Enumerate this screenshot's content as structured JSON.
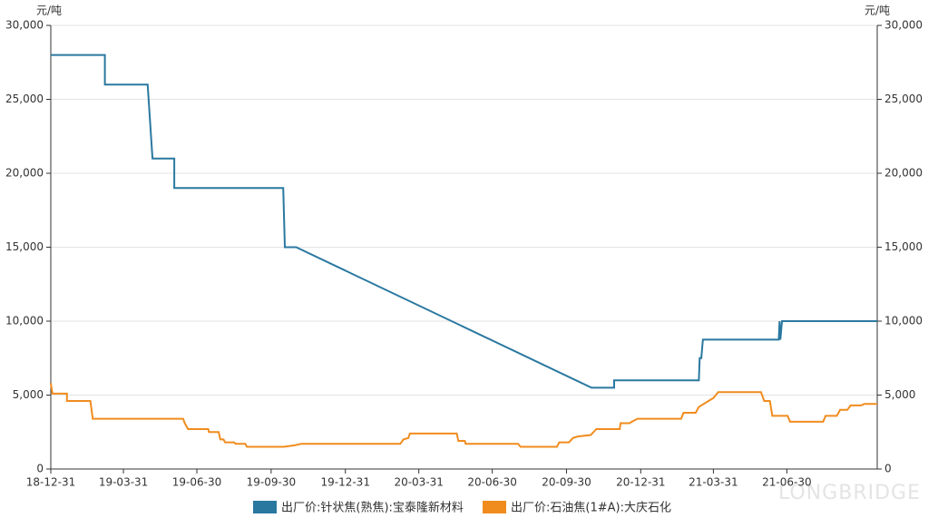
{
  "chart_data": {
    "type": "line",
    "y_unit": "元/吨",
    "y2_unit": "元/吨",
    "watermark": "LONGBRIDGE",
    "xlim": [
      "18-12-31",
      "21-10-20"
    ],
    "xticks": [
      "18-12-31",
      "19-03-31",
      "19-06-30",
      "19-09-30",
      "19-12-31",
      "20-03-31",
      "20-06-30",
      "20-09-30",
      "20-12-31",
      "21-03-31",
      "21-06-30"
    ],
    "ylim": [
      0,
      30000
    ],
    "yticks": [
      0,
      {
        "value": 5000,
        "label": "5,000"
      },
      {
        "value": 10000,
        "label": "10,000"
      },
      {
        "value": 15000,
        "label": "15,000"
      },
      {
        "value": 20000,
        "label": "20,000"
      },
      {
        "value": 25000,
        "label": "25,000"
      },
      {
        "value": 30000,
        "label": "30,000"
      }
    ],
    "y2lim": [
      0,
      30000
    ],
    "y2ticks": [
      0,
      {
        "value": 5000,
        "label": "5,000"
      },
      {
        "value": 10000,
        "label": "10,000"
      },
      {
        "value": 15000,
        "label": "15,000"
      },
      {
        "value": 20000,
        "label": "20,000"
      },
      {
        "value": 25000,
        "label": "25,000"
      },
      {
        "value": 30000,
        "label": "30,000"
      }
    ],
    "grid": true,
    "legend": "bottom",
    "series": [
      {
        "name": "出厂价:针状焦(熟焦):宝泰隆新材料",
        "color": "#2a78a0",
        "x": [
          "18-12-31",
          "19-03-08",
          "19-03-08",
          "19-04-30",
          "19-05-06",
          "19-06-02",
          "19-06-02",
          "19-10-15",
          "19-10-17",
          "19-10-31",
          "20-10-31",
          "20-11-28",
          "20-11-28",
          "21-03-13",
          "21-03-14",
          "21-03-16",
          "21-03-18",
          "21-06-20",
          "21-06-21",
          "21-06-22",
          "21-06-24",
          "21-10-20"
        ],
        "values": [
          28000,
          28000,
          26000,
          26000,
          21000,
          21000,
          19000,
          19000,
          15000,
          15000,
          5500,
          5500,
          6000,
          6000,
          7500,
          7500,
          8750,
          8750,
          10000,
          8750,
          10000,
          10000
        ]
      },
      {
        "name": "出厂价:石油焦(1#A):大庆石化",
        "color": "#f08c1e",
        "x": [
          "18-12-31",
          "19-01-02",
          "19-01-20",
          "19-01-20",
          "19-02-18",
          "19-02-21",
          "19-06-13",
          "19-06-15",
          "19-06-19",
          "19-07-14",
          "19-07-15",
          "19-07-27",
          "19-07-29",
          "19-08-02",
          "19-08-04",
          "19-08-15",
          "19-08-17",
          "19-08-29",
          "19-08-31",
          "19-10-16",
          "19-10-29",
          "19-11-06",
          "20-03-08",
          "20-03-12",
          "20-03-18",
          "20-03-20",
          "20-05-17",
          "20-05-19",
          "20-05-27",
          "20-05-28",
          "20-08-01",
          "20-08-04",
          "20-09-18",
          "20-09-21",
          "20-10-03",
          "20-10-08",
          "20-10-14",
          "20-10-30",
          "20-11-06",
          "20-12-05",
          "20-12-06",
          "20-12-17",
          "20-12-20",
          "20-12-27",
          "21-02-19",
          "21-02-22",
          "21-03-09",
          "21-03-13",
          "21-03-22",
          "21-03-31",
          "21-04-06",
          "21-05-29",
          "21-06-02",
          "21-06-09",
          "21-06-12",
          "21-07-01",
          "21-07-04",
          "21-08-14",
          "21-08-17",
          "21-08-31",
          "21-09-04",
          "21-09-13",
          "21-09-17",
          "21-09-30",
          "21-10-04",
          "21-10-20"
        ],
        "values": [
          5800,
          5100,
          5100,
          4600,
          4600,
          3400,
          3400,
          3100,
          2700,
          2700,
          2500,
          2500,
          2000,
          2000,
          1800,
          1800,
          1700,
          1700,
          1500,
          1500,
          1600,
          1700,
          1700,
          2000,
          2100,
          2400,
          2400,
          1900,
          1900,
          1700,
          1700,
          1500,
          1500,
          1800,
          1800,
          2100,
          2200,
          2300,
          2700,
          2700,
          3100,
          3100,
          3200,
          3400,
          3400,
          3800,
          3800,
          4200,
          4500,
          4800,
          5200,
          5200,
          4600,
          4600,
          3600,
          3600,
          3200,
          3200,
          3600,
          3600,
          4000,
          4000,
          4300,
          4300,
          4400,
          4400
        ]
      }
    ]
  }
}
